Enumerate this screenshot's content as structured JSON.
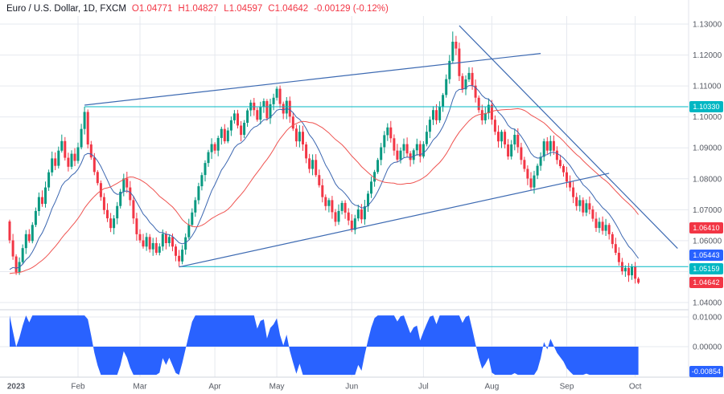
{
  "header": {
    "title": "Euro / U.S. Dollar, 1D, FXCM",
    "o": "O1.04771",
    "h": "H1.04827",
    "l": "L1.04597",
    "c": "C1.04642",
    "change": "-0.00129 (-0.12%)"
  },
  "axes": {
    "price_labels": [
      "1.13000",
      "1.12000",
      "1.11000",
      "1.10000",
      "1.09000",
      "1.08000",
      "1.07000",
      "1.06000",
      "1.05000",
      "1.04000"
    ],
    "osc_labels": [
      {
        "label": "0.01000",
        "value": 0.01
      },
      {
        "label": "0.00000",
        "value": 0.0
      }
    ]
  },
  "badges": [
    {
      "text": "1.10330",
      "value": 1.1033,
      "bg": "#00B7C3",
      "dy": 0
    },
    {
      "text": "1.06410",
      "value": 1.0641,
      "bg": "#F23645",
      "dy": 0
    },
    {
      "text": "1.05443",
      "value": 1.05443,
      "bg": "#2962FF",
      "dy": -3
    },
    {
      "text": "1.05159",
      "value": 1.05159,
      "bg": "#00B7C3",
      "dy": 3
    },
    {
      "text": "1.04642",
      "value": 1.04642,
      "bg": "#F23645",
      "dy": 0
    }
  ],
  "osc_badge": {
    "text": "-0.00854",
    "value": -0.00854,
    "bg": "#2962FF"
  },
  "chart_data": {
    "type": "candlestick",
    "symbol": "Euro / U.S. Dollar",
    "interval": "1D",
    "exchange": "FXCM",
    "ohlc_last": {
      "open": 1.04771,
      "high": 1.04827,
      "low": 1.04597,
      "close": 1.04642,
      "change": -0.00129,
      "change_pct": -0.12
    },
    "ylim": [
      1.0375,
      1.1335
    ],
    "key_levels": [
      1.1033,
      1.0641,
      1.05443,
      1.05159,
      1.04642
    ],
    "months": [
      {
        "label": "2023",
        "i": 0,
        "year": true
      },
      {
        "label": "Feb",
        "i": 21
      },
      {
        "label": "Mar",
        "i": 40
      },
      {
        "label": "Apr",
        "i": 63
      },
      {
        "label": "May",
        "i": 82
      },
      {
        "label": "Jun",
        "i": 105
      },
      {
        "label": "Jul",
        "i": 127
      },
      {
        "label": "Aug",
        "i": 148
      },
      {
        "label": "Sep",
        "i": 171
      },
      {
        "label": "Oct",
        "i": 192
      }
    ],
    "first_open": 1.0662,
    "pad": 1.049,
    "closes": [
      1.0601,
      1.0549,
      1.0498,
      1.0531,
      1.0576,
      1.0621,
      1.0599,
      1.0651,
      1.0696,
      1.0741,
      1.0719,
      1.0772,
      1.0821,
      1.0866,
      1.0842,
      1.0891,
      1.0922,
      1.0868,
      1.0839,
      1.0881,
      1.0858,
      1.0902,
      1.0961,
      1.1016,
      1.0911,
      1.0869,
      1.0822,
      1.0786,
      1.0741,
      1.0699,
      1.0672,
      1.0641,
      1.0672,
      1.0712,
      1.0758,
      1.0801,
      1.0772,
      1.0731,
      1.0672,
      1.0621,
      1.0601,
      1.0581,
      1.0612,
      1.0572,
      1.0592,
      1.0561,
      1.0581,
      1.0622,
      1.0592,
      1.0612,
      1.0581,
      1.0551,
      1.0533,
      1.0571,
      1.0611,
      1.0651,
      1.0691,
      1.0731,
      1.0776,
      1.0812,
      1.0851,
      1.0886,
      1.0912,
      1.0891,
      1.0932,
      1.0961,
      1.0921,
      1.0956,
      1.0989,
      1.1011,
      1.0972,
      1.0942,
      1.0981,
      1.1021,
      1.1046,
      1.1022,
      1.0991,
      1.1032,
      1.1051,
      1.0996,
      1.1041,
      1.1062,
      1.1091,
      1.1042,
      1.1011,
      1.1052,
      1.1001,
      1.0962,
      1.0921,
      1.0952,
      1.0911,
      1.0866,
      1.0832,
      1.0861,
      1.0812,
      1.0779,
      1.0741,
      1.0712,
      1.0731,
      1.0692,
      1.0661,
      1.0696,
      1.0722,
      1.0691,
      1.0665,
      1.0635,
      1.0672,
      1.0701,
      1.0669,
      1.0711,
      1.0752,
      1.0791,
      1.0822,
      1.0861,
      1.0902,
      1.0941,
      1.0966,
      1.0931,
      1.0891,
      1.0862,
      1.0891,
      1.0912,
      1.0882,
      1.0861,
      1.0892,
      1.0912,
      1.0872,
      1.0912,
      1.0952,
      1.0991,
      1.1022,
      1.0989,
      1.1032,
      1.1071,
      1.1122,
      1.1181,
      1.1243,
      1.1221,
      1.1132,
      1.1089,
      1.1121,
      1.1142,
      1.1101,
      1.1062,
      1.1022,
      1.0989,
      1.1012,
      1.1039,
      1.0991,
      1.0952,
      1.0921,
      1.0952,
      1.0911,
      1.0872,
      1.0911,
      1.0942,
      1.0902,
      1.0861,
      1.0832,
      1.0801,
      1.0772,
      1.0811,
      1.0842,
      1.0871,
      1.0921,
      1.0891,
      1.0922,
      1.0891,
      1.0861,
      1.0841,
      1.0821,
      1.0791,
      1.0772,
      1.0741,
      1.0712,
      1.0731,
      1.0691,
      1.0721,
      1.0701,
      1.0671,
      1.0641,
      1.0661,
      1.0632,
      1.0651,
      1.0621,
      1.0589,
      1.0561,
      1.0531,
      1.0501,
      1.0512,
      1.0488,
      1.0516,
      1.0477,
      1.0464
    ],
    "wick_overrides": {
      "23": {
        "h": 1.1033
      },
      "52": {
        "l": 1.0516
      },
      "136": {
        "h": 1.1276
      },
      "193": {
        "h": 1.04827,
        "l": 1.04597
      }
    },
    "trend_lines": [
      {
        "i1": 23,
        "p1": 1.1038,
        "i2": 163,
        "p2": 1.1205
      },
      {
        "i1": 52,
        "p1": 1.0515,
        "i2": 184,
        "p2": 1.0818
      },
      {
        "i1": 138,
        "p1": 1.1295,
        "i2": 205,
        "p2": 1.0575
      }
    ],
    "rays": [
      {
        "p": 1.1033,
        "i1": 23
      },
      {
        "p": 1.05159,
        "i1": 52
      }
    ],
    "oscillator": {
      "type": "area",
      "final": -0.00854,
      "gridline_values": [
        0.01,
        0.0
      ]
    },
    "colors": {
      "up": "#089981",
      "down": "#F23645",
      "grid": "#e6e9ef",
      "axis_text": "#565a63",
      "ma_fast": "#3b66b0",
      "ma_slow": "#ef5350",
      "trend": "#3d6ab2",
      "ray": "#00B7C3",
      "osc": "#2962FF",
      "divider": "#d1d4dc",
      "axis_border": "#e0e3eb",
      "title": "#131722",
      "neg": "#F23645"
    }
  }
}
